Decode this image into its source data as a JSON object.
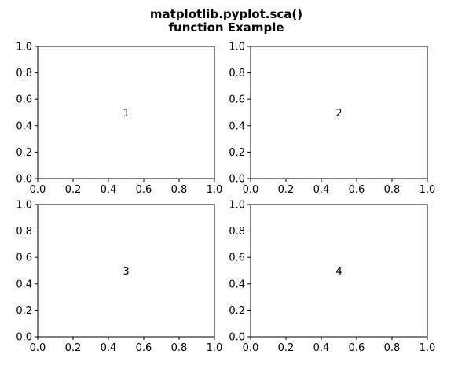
{
  "figure": {
    "title_line1": "matplotlib.pyplot.sca()",
    "title_line2": "function Example"
  },
  "chart_data": [
    {
      "type": "scatter",
      "title": "",
      "xlabel": "",
      "ylabel": "",
      "xlim": [
        0,
        1
      ],
      "ylim": [
        0,
        1
      ],
      "xticks": [
        "0.0",
        "0.2",
        "0.4",
        "0.6",
        "0.8",
        "1.0"
      ],
      "yticks": [
        "0.0",
        "0.2",
        "0.4",
        "0.6",
        "0.8",
        "1.0"
      ],
      "grid": false,
      "annotations": [
        {
          "text": "1",
          "x": 0.5,
          "y": 0.5
        }
      ]
    },
    {
      "type": "scatter",
      "title": "",
      "xlabel": "",
      "ylabel": "",
      "xlim": [
        0,
        1
      ],
      "ylim": [
        0,
        1
      ],
      "xticks": [
        "0.0",
        "0.2",
        "0.4",
        "0.6",
        "0.8",
        "1.0"
      ],
      "yticks": [
        "0.0",
        "0.2",
        "0.4",
        "0.6",
        "0.8",
        "1.0"
      ],
      "grid": false,
      "annotations": [
        {
          "text": "2",
          "x": 0.5,
          "y": 0.5
        }
      ]
    },
    {
      "type": "scatter",
      "title": "",
      "xlabel": "",
      "ylabel": "",
      "xlim": [
        0,
        1
      ],
      "ylim": [
        0,
        1
      ],
      "xticks": [
        "0.0",
        "0.2",
        "0.4",
        "0.6",
        "0.8",
        "1.0"
      ],
      "yticks": [
        "0.0",
        "0.2",
        "0.4",
        "0.6",
        "0.8",
        "1.0"
      ],
      "grid": false,
      "annotations": [
        {
          "text": "3",
          "x": 0.5,
          "y": 0.5
        }
      ]
    },
    {
      "type": "scatter",
      "title": "",
      "xlabel": "",
      "ylabel": "",
      "xlim": [
        0,
        1
      ],
      "ylim": [
        0,
        1
      ],
      "xticks": [
        "0.0",
        "0.2",
        "0.4",
        "0.6",
        "0.8",
        "1.0"
      ],
      "yticks": [
        "0.0",
        "0.2",
        "0.4",
        "0.6",
        "0.8",
        "1.0"
      ],
      "grid": false,
      "annotations": [
        {
          "text": "4",
          "x": 0.5,
          "y": 0.5
        }
      ]
    }
  ]
}
